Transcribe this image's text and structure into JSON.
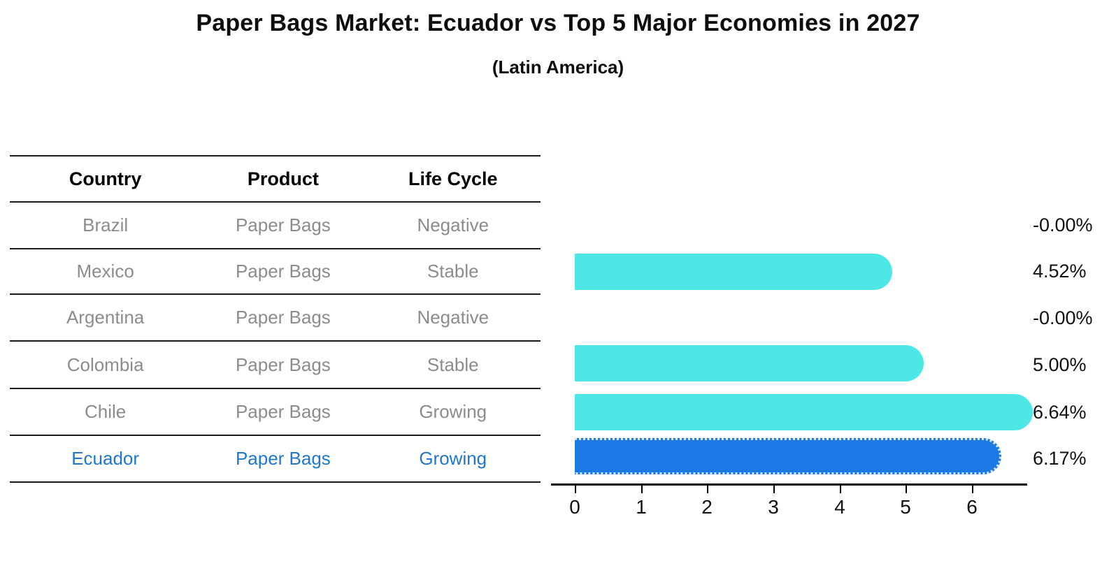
{
  "title": "Paper Bags Market: Ecuador vs Top 5 Major Economies in 2027",
  "subtitle": "(Latin America)",
  "table": {
    "headers": [
      "Country",
      "Product",
      "Life Cycle"
    ],
    "rows": [
      {
        "country": "Brazil",
        "product": "Paper Bags",
        "life_cycle": "Negative",
        "value_label": "-0.00%"
      },
      {
        "country": "Mexico",
        "product": "Paper Bags",
        "life_cycle": "Stable",
        "value_label": "4.52%"
      },
      {
        "country": "Argentina",
        "product": "Paper Bags",
        "life_cycle": "Negative",
        "value_label": "-0.00%"
      },
      {
        "country": "Colombia",
        "product": "Paper Bags",
        "life_cycle": "Stable",
        "value_label": "5.00%"
      },
      {
        "country": "Chile",
        "product": "Paper Bags",
        "life_cycle": "Growing",
        "value_label": "6.64%"
      },
      {
        "country": "Ecuador",
        "product": "Paper Bags",
        "life_cycle": "Growing",
        "value_label": "6.17%",
        "highlighted": true
      }
    ]
  },
  "chart_data": {
    "type": "bar",
    "orientation": "horizontal",
    "title": "Paper Bags Market: Ecuador vs Top 5 Major Economies in 2027",
    "subtitle": "(Latin America)",
    "categories": [
      "Brazil",
      "Mexico",
      "Argentina",
      "Colombia",
      "Chile",
      "Ecuador"
    ],
    "values": [
      -0.0,
      4.52,
      -0.0,
      5.0,
      6.64,
      6.17
    ],
    "value_labels": [
      "-0.00%",
      "4.52%",
      "-0.00%",
      "5.00%",
      "6.64%",
      "6.17%"
    ],
    "x_ticks": [
      "0",
      "1",
      "2",
      "3",
      "4",
      "5",
      "6"
    ],
    "xlim": [
      0,
      6.9
    ],
    "xlabel": "",
    "ylabel": "",
    "grid": false,
    "legend": "none",
    "highlighted_category": "Ecuador"
  },
  "colors": {
    "bar": "#4DE8E6",
    "highlight_bar": "#1D79E5",
    "highlight_text": "#1F77D0",
    "row_text": "#8C8C8C",
    "header_text": "#000000",
    "axis": "#000000"
  }
}
